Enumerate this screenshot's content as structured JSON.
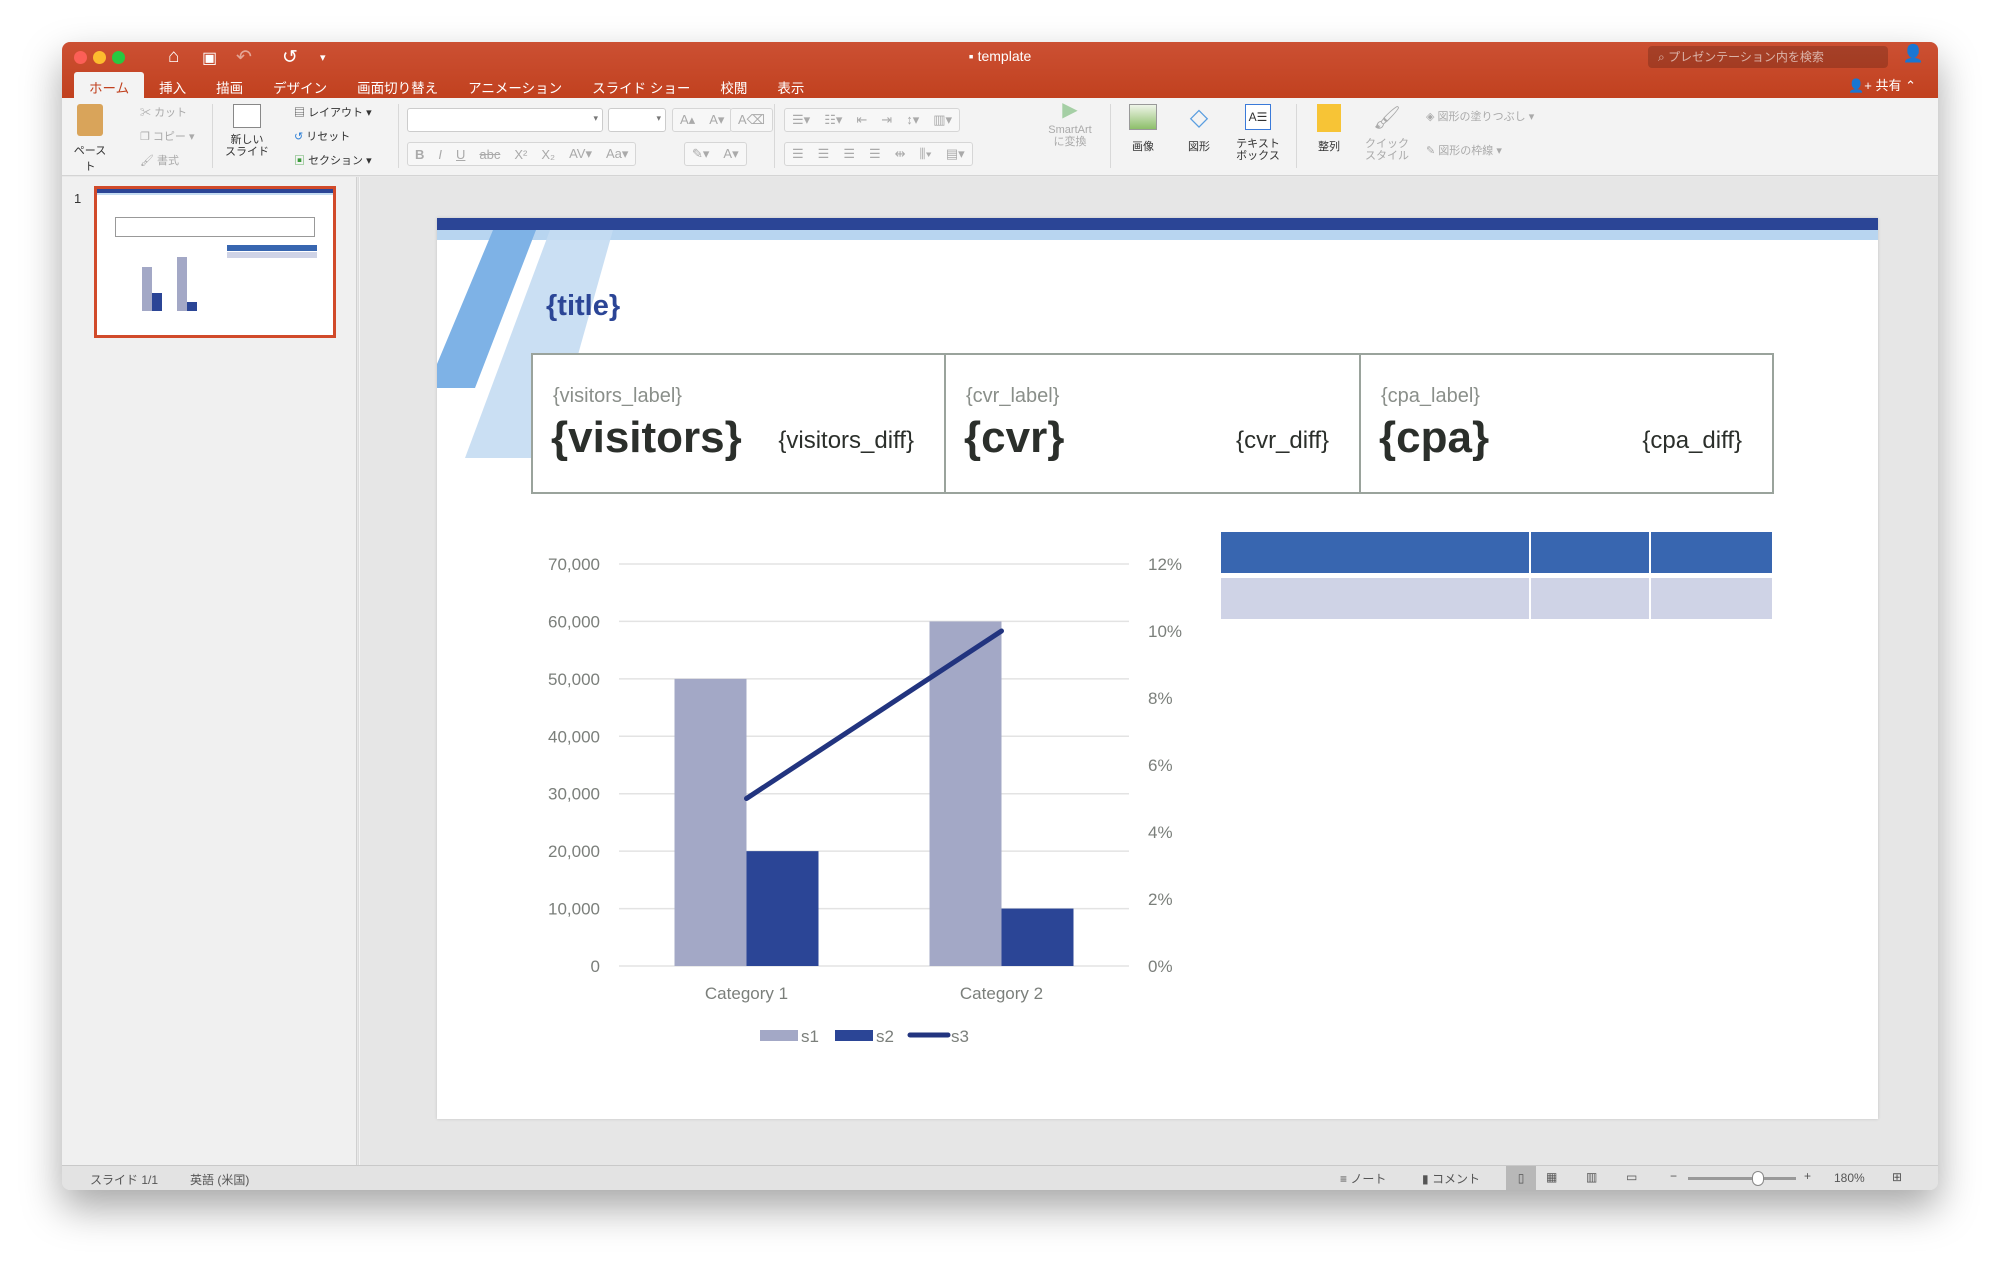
{
  "window": {
    "title": "template",
    "search_placeholder": "プレゼンテーション内を検索",
    "share_label": "共有"
  },
  "tabs": [
    "ホーム",
    "挿入",
    "描画",
    "デザイン",
    "画面切り替え",
    "アニメーション",
    "スライド ショー",
    "校閲",
    "表示"
  ],
  "active_tab": "ホーム",
  "ribbon": {
    "paste": "ペースト",
    "cut": "カット",
    "copy": "コピー",
    "format": "書式",
    "new_slide": "新しい\nスライド",
    "layout": "レイアウト",
    "reset": "リセット",
    "section": "セクション",
    "smartart": "SmartArt\nに変換",
    "image": "画像",
    "shape": "図形",
    "textbox": "テキスト\nボックス",
    "arrange": "整列",
    "quick_style": "クイック\nスタイル",
    "shape_fill": "図形の塗りつぶし",
    "shape_outline": "図形の枠線",
    "font_name": "",
    "font_size": ""
  },
  "thumbnails": [
    {
      "number": "1"
    }
  ],
  "slide": {
    "title": "{title}",
    "kpis": [
      {
        "label": "{visitors_label}",
        "value": "{visitors}",
        "diff": "{visitors_diff}"
      },
      {
        "label": "{cvr_label}",
        "value": "{cvr}",
        "diff": "{cvr_diff}"
      },
      {
        "label": "{cpa_label}",
        "value": "{cpa}",
        "diff": "{cpa_diff}"
      }
    ],
    "colors": {
      "dark_blue": "#2b4596",
      "mid_blue": "#7eb2e6",
      "light_blue": "#c4dcf2",
      "table_header": "#3866b0",
      "table_row": "#cfd3e6"
    }
  },
  "chart_data": {
    "type": "bar",
    "categories": [
      "Category 1",
      "Category 2"
    ],
    "series": [
      {
        "name": "s1",
        "type": "bar",
        "axis": "left",
        "values": [
          50000,
          60000
        ],
        "color": "#a3a8c6"
      },
      {
        "name": "s2",
        "type": "bar",
        "axis": "left",
        "values": [
          20000,
          10000
        ],
        "color": "#2b4596"
      },
      {
        "name": "s3",
        "type": "line",
        "axis": "right",
        "values": [
          5,
          10
        ],
        "color": "#22347f"
      }
    ],
    "y_left": {
      "range": [
        0,
        70000
      ],
      "ticks": [
        "0",
        "10,000",
        "20,000",
        "30,000",
        "40,000",
        "50,000",
        "60,000",
        "70,000"
      ]
    },
    "y_right": {
      "range": [
        0,
        12
      ],
      "unit": "%",
      "ticks": [
        "0%",
        "2%",
        "4%",
        "6%",
        "8%",
        "10%",
        "12%"
      ]
    },
    "grid": true,
    "legend": "bottom"
  },
  "status": {
    "slide": "スライド 1/1",
    "language": "英語 (米国)",
    "notes": "ノート",
    "comments": "コメント",
    "zoom": "180%"
  }
}
